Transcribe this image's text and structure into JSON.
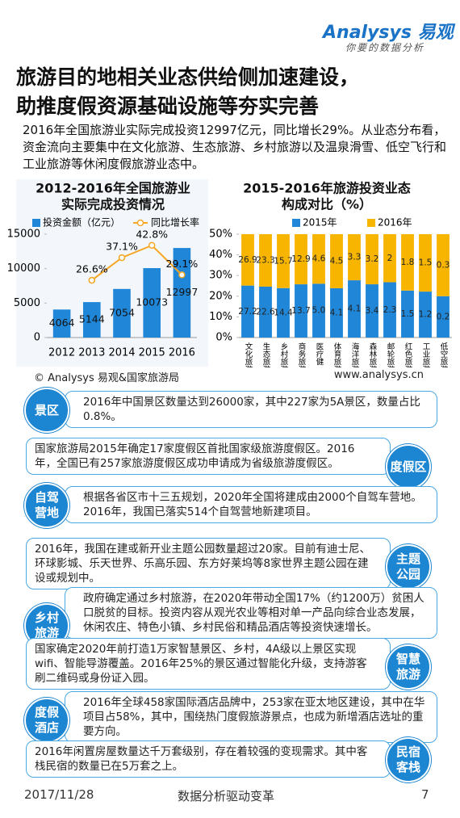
{
  "header": {
    "logo": "Analysys 易观",
    "slogan": "你要的数据分析",
    "title": [
      "旅游目的地相关业态供给侧加速建设，",
      "助推度假资源基础设施等夯实完善"
    ]
  },
  "intro": "2016年全国旅游业实际完成投资12997亿元，同比增长29%。从业态分布看，资金流向主要集中在文化旅游、生态旅游、乡村旅游以及温泉滑雪、低空飞行和工业旅游等休闲度假旅游业态中。",
  "chart_data": [
    {
      "type": "bar",
      "title": [
        "2012-2016年全国旅游业",
        "实际完成投资情况"
      ],
      "categories": [
        "2012",
        "2013",
        "2014",
        "2015",
        "2016"
      ],
      "series": [
        {
          "name": "投资金额（亿元）",
          "color": "#1f86d8",
          "values": [
            4064,
            5144,
            7054,
            10073,
            12997
          ]
        },
        {
          "name": "同比增长率",
          "type": "line",
          "axis": "y2",
          "color": "#f5a623",
          "values": [
            null,
            26.6,
            37.1,
            42.8,
            29.1
          ],
          "value_labels": [
            null,
            "26.6%",
            "37.1%",
            "42.8%",
            "29.1%"
          ]
        }
      ],
      "ylim": [
        0,
        15000
      ],
      "yticks": [
        0,
        5000,
        10000,
        15000
      ],
      "y2lim": [
        0,
        48
      ]
    },
    {
      "type": "bar",
      "stack": "percent",
      "title": [
        "2015-2016年旅游投资业态",
        "构成对比（%）"
      ],
      "categories": [
        "文化旅游",
        "生态旅游",
        "乡村旅游",
        "商务旅游",
        "医疗健",
        "体育旅游",
        "海洋旅游",
        "森林旅游",
        "邮轮旅游",
        "红色旅游",
        "工业旅游",
        "低空旅游"
      ],
      "series": [
        {
          "name": "2015年",
          "color": "#1f86d8",
          "values": [
            27.2,
            22.6,
            14.4,
            13.7,
            5.0,
            4.1,
            4.1,
            3.4,
            2.3,
            1.5,
            1.2,
            0.2
          ],
          "value_labels": [
            "27.2",
            "22.6",
            "14.4",
            "13.7",
            "5.0",
            "4.1",
            "4.1",
            "3.4",
            "2.3",
            "1.5",
            "1.2",
            "0.2"
          ]
        },
        {
          "name": "2016年",
          "color": "#f7b500",
          "values": [
            26.9,
            23.3,
            15.7,
            12.9,
            4.6,
            4.5,
            3.3,
            3.2,
            2,
            1.8,
            1.5,
            0.3
          ]
        }
      ],
      "ylim": [
        0,
        50
      ],
      "yticks": [
        {
          "value": 0,
          "label": "0%"
        },
        {
          "value": 10,
          "label": "10%"
        },
        {
          "value": 20,
          "label": "20%"
        },
        {
          "value": 30,
          "label": "30%"
        },
        {
          "value": 40,
          "label": "40%"
        },
        {
          "value": 50,
          "label": "50%"
        }
      ]
    }
  ],
  "source": "© Analysys 易观&国家旅游局",
  "site": "www.analysys.cn",
  "items": [
    {
      "label": [
        "景区"
      ],
      "text": "2016年中国景区数量达到26000家，其中227家为5A景区，数量占比0.8%。"
    },
    {
      "label": [
        "度假区"
      ],
      "text": "国家旅游局2015年确定17家度假区首批国家级旅游度假区。2016年，全国已有257家旅游度假区成功申请成为省级旅游度假区。"
    },
    {
      "label": [
        "自驾",
        "营地"
      ],
      "text": "根据各省区市十三五规划，2020年全国将建成由2000个自驾车营地。2016年，我国已落实514个自驾营地新建项目。"
    },
    {
      "label": [
        "主题",
        "公园"
      ],
      "text": "2016年，我国在建或新开业主题公园数量超过20家。目前有迪士尼、环球影城、乐天世界、乐高乐园、东方好莱坞等8家世界主题公园在建设或规划中。"
    },
    {
      "label": [
        "乡村",
        "旅游"
      ],
      "text": "政府确定通过乡村旅游，在2020年带动全国17%（约1200万）贫困人口脱贫的目标。投资内容从观光农业等相对单一产品向综合业态发展，休闲农庄、特色小镇、乡村民俗和精品酒店等投资快速增长。"
    },
    {
      "label": [
        "智慧",
        "旅游"
      ],
      "text": "国家确定2020年前打造1万家智慧景区、乡村，4A级以上景区实现wifi、智能导游覆盖。2016年25%的景区通过智能化升级，支持游客刷二维码或身份证入园。"
    },
    {
      "label": [
        "度假",
        "酒店"
      ],
      "text": "2016年全球458家国际酒店品牌中，253家在亚太地区建设，其中在华项目占58%，其中，围绕热门度假旅游景点，也成为新增酒店选址的重要方向。"
    },
    {
      "label": [
        "民宿",
        "客栈"
      ],
      "text": "2016年闲置房屋数量达千万套级别，存在着较强的变现需求。其中客栈民宿的数量已在5万套之上。"
    }
  ],
  "footer": {
    "date": "2017/11/28",
    "center": "数据分析驱动变革",
    "page": "7"
  }
}
